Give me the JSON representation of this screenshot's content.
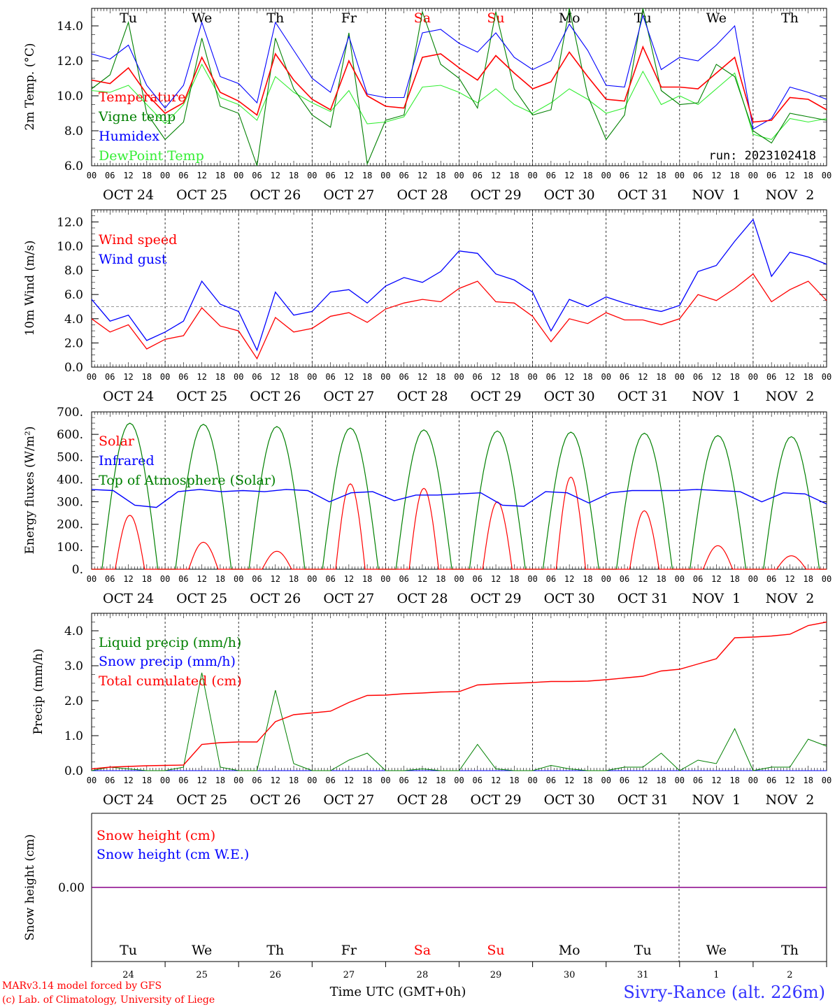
{
  "run_label": "run: 2023102418",
  "station": "Sivry-Rance (alt. 226m)",
  "footer": [
    "MARv3.14 model forced by GFS",
    "(c) Lab. of Climatology, University of Liege"
  ],
  "x_title": "Time UTC (GMT+0h)",
  "hour_ticks": [
    "00",
    "06",
    "12",
    "18"
  ],
  "date_labels": [
    "OCT 24",
    "OCT 25",
    "OCT 26",
    "OCT 27",
    "OCT 28",
    "OCT 29",
    "OCT 30",
    "OCT 31",
    "NOV  1",
    "NOV  2"
  ],
  "weekdays": [
    "Tu",
    "We",
    "Th",
    "Fr",
    "Sa",
    "Su",
    "Mo",
    "Tu",
    "We",
    "Th"
  ],
  "weekend_days": [
    "Sa",
    "Su"
  ],
  "day_numbers": [
    "24",
    "25",
    "26",
    "27",
    "28",
    "29",
    "30",
    "31",
    "1",
    "2"
  ],
  "colors": {
    "red": "#ff0000",
    "green": "#008000",
    "blue": "#0000ff",
    "lightgreen": "#33ee33",
    "purple": "#880088",
    "grey": "#999999",
    "station": "#3333ff"
  },
  "chart_data": [
    {
      "type": "line",
      "ylabel": "2m Temp. (°C)",
      "ylim": [
        6,
        15
      ],
      "yticks": [
        "6.0",
        "8.0",
        "10.0",
        "12.0",
        "14.0"
      ],
      "x": [
        "Oct 24 00h",
        "Oct 24 06h",
        "Oct 24 12h",
        "Oct 24 18h",
        "Oct 25 00h",
        "Oct 25 06h",
        "Oct 25 12h",
        "Oct 25 18h",
        "Oct 26 00h",
        "Oct 26 06h",
        "Oct 26 12h",
        "Oct 26 18h",
        "Oct 27 00h",
        "Oct 27 06h",
        "Oct 27 12h",
        "Oct 27 18h",
        "Oct 28 00h",
        "Oct 28 06h",
        "Oct 28 12h",
        "Oct 28 18h",
        "Oct 29 00h",
        "Oct 29 06h",
        "Oct 29 12h",
        "Oct 29 18h",
        "Oct 30 00h",
        "Oct 30 06h",
        "Oct 30 12h",
        "Oct 30 18h",
        "Oct 31 00h",
        "Oct 31 06h",
        "Oct 31 12h",
        "Oct 31 18h",
        "Nov 1 00h",
        "Nov 1 06h",
        "Nov 1 12h",
        "Nov 1 18h",
        "Nov 2 00h",
        "Nov 2 06h",
        "Nov 2 12h",
        "Nov 2 18h",
        "Nov 3 00h"
      ],
      "series": [
        {
          "name": "Temperature",
          "color": "#ff0000",
          "values": [
            10.9,
            10.7,
            11.6,
            10.1,
            9.0,
            9.6,
            12.2,
            10.2,
            9.7,
            8.9,
            12.4,
            10.9,
            9.8,
            9.2,
            12.0,
            10.0,
            9.4,
            9.3,
            12.2,
            12.4,
            11.6,
            10.9,
            12.3,
            11.3,
            10.4,
            10.8,
            12.5,
            11.1,
            9.8,
            9.7,
            12.8,
            10.5,
            10.5,
            10.4,
            11.3,
            12.2,
            8.5,
            8.6,
            9.9,
            9.8,
            9.2
          ]
        },
        {
          "name": "Vigne temp",
          "color": "#008000",
          "values": [
            10.4,
            11.2,
            14.2,
            9.0,
            7.5,
            8.5,
            13.3,
            9.4,
            9.0,
            6.0,
            13.3,
            10.4,
            8.9,
            8.2,
            13.6,
            6.1,
            8.6,
            8.9,
            14.8,
            11.8,
            11.0,
            9.3,
            14.8,
            10.4,
            8.9,
            9.2,
            15.0,
            10.0,
            7.5,
            8.9,
            15.0,
            10.3,
            9.5,
            9.6,
            11.8,
            11.1,
            8.0,
            7.3,
            9.0,
            8.8,
            8.6
          ]
        },
        {
          "name": "Humidex",
          "color": "#0000ff",
          "values": [
            12.4,
            12.1,
            12.9,
            10.6,
            9.3,
            10.6,
            14.2,
            11.1,
            10.7,
            9.6,
            14.2,
            12.6,
            11.0,
            10.2,
            13.4,
            10.1,
            9.9,
            9.9,
            13.6,
            13.8,
            13.0,
            12.5,
            13.6,
            12.2,
            11.5,
            12.0,
            14.1,
            12.6,
            10.6,
            10.5,
            14.6,
            11.5,
            12.2,
            12.0,
            12.9,
            14.0,
            8.1,
            8.7,
            10.5,
            10.2,
            9.8
          ]
        },
        {
          "name": "DewPoint Temp",
          "color": "#33ee33",
          "values": [
            10.3,
            10.2,
            10.6,
            9.5,
            8.4,
            9.5,
            11.8,
            9.9,
            9.5,
            8.6,
            11.1,
            10.2,
            9.6,
            9.1,
            10.3,
            8.4,
            8.5,
            8.8,
            10.5,
            10.6,
            10.2,
            9.6,
            10.4,
            9.5,
            9.0,
            9.6,
            10.4,
            9.8,
            9.0,
            9.3,
            11.4,
            9.5,
            10.0,
            9.5,
            10.4,
            11.3,
            7.8,
            7.5,
            8.7,
            8.5,
            8.7
          ]
        }
      ]
    },
    {
      "type": "line",
      "ylabel": "10m Wind (m/s)",
      "ylim": [
        0,
        13
      ],
      "yticks": [
        "0.0",
        "2.0",
        "4.0",
        "6.0",
        "8.0",
        "10.0",
        "12.0"
      ],
      "reference_line": 5.0,
      "series": [
        {
          "name": "Wind speed",
          "color": "#ff0000",
          "values": [
            4.0,
            2.9,
            3.5,
            1.5,
            2.3,
            2.6,
            4.9,
            3.4,
            3.0,
            0.7,
            4.1,
            2.9,
            3.2,
            4.2,
            4.5,
            3.7,
            4.8,
            5.3,
            5.6,
            5.4,
            6.5,
            7.1,
            5.4,
            5.3,
            4.2,
            2.1,
            4.0,
            3.6,
            4.5,
            3.9,
            3.9,
            3.5,
            4.0,
            6.0,
            5.5,
            6.5,
            7.7,
            5.4,
            6.4,
            7.1,
            5.5
          ]
        },
        {
          "name": "Wind gust",
          "color": "#0000ff",
          "values": [
            5.6,
            3.8,
            4.3,
            2.2,
            2.9,
            3.8,
            7.1,
            5.2,
            4.6,
            1.4,
            6.2,
            4.3,
            4.6,
            6.2,
            6.4,
            5.3,
            6.7,
            7.4,
            7.0,
            7.9,
            9.6,
            9.4,
            7.7,
            7.2,
            6.2,
            3.0,
            5.6,
            5.0,
            5.8,
            5.3,
            4.9,
            4.6,
            5.1,
            7.9,
            8.4,
            10.4,
            12.2,
            7.5,
            9.5,
            9.1,
            8.5
          ]
        }
      ]
    },
    {
      "type": "line",
      "ylabel": "Energy fluxes (W/m²)",
      "ylim": [
        0,
        700
      ],
      "yticks": [
        "0.",
        "100.",
        "200.",
        "300.",
        "400.",
        "500.",
        "600.",
        "700."
      ],
      "series": [
        {
          "name": "Solar",
          "color": "#ff0000",
          "peaks": [
            240,
            120,
            80,
            380,
            360,
            300,
            410,
            260,
            105,
            60
          ]
        },
        {
          "name": "Infrared",
          "color": "#0000ff",
          "values": [
            355,
            350,
            285,
            275,
            345,
            355,
            345,
            350,
            345,
            355,
            350,
            300,
            340,
            345,
            305,
            330,
            330,
            335,
            340,
            285,
            280,
            345,
            340,
            295,
            340,
            350,
            350,
            350,
            355,
            350,
            345,
            300,
            340,
            335,
            290
          ]
        },
        {
          "name": "Top of Atmosphere (Solar)",
          "color": "#008000",
          "peaks": [
            650,
            645,
            635,
            628,
            620,
            615,
            610,
            605,
            595,
            590
          ]
        }
      ]
    },
    {
      "type": "line",
      "ylabel": "Precip (mm/h)",
      "ylim": [
        0,
        4.5
      ],
      "yticks": [
        "0.0",
        "1.0",
        "2.0",
        "3.0",
        "4.0"
      ],
      "series": [
        {
          "name": "Liquid precip (mm/h)",
          "color": "#008000",
          "values": [
            0.0,
            0.1,
            0.05,
            0.0,
            0.0,
            0.1,
            2.8,
            0.1,
            0.0,
            0.0,
            2.3,
            0.2,
            0.0,
            0.0,
            0.3,
            0.5,
            0.0,
            0.0,
            0.05,
            0.0,
            0.0,
            0.75,
            0.05,
            0.0,
            0.0,
            0.15,
            0.05,
            0.0,
            0.0,
            0.1,
            0.1,
            0.5,
            0.0,
            0.3,
            0.2,
            1.2,
            0.0,
            0.1,
            0.1,
            0.9,
            0.7
          ]
        },
        {
          "name": "Snow precip (mm/h)",
          "color": "#0000ff",
          "values": [
            0,
            0,
            0,
            0,
            0,
            0,
            0,
            0,
            0,
            0,
            0,
            0,
            0,
            0,
            0,
            0,
            0,
            0,
            0,
            0,
            0,
            0,
            0,
            0,
            0,
            0,
            0,
            0,
            0,
            0,
            0,
            0,
            0,
            0,
            0,
            0,
            0,
            0,
            0,
            0,
            0
          ]
        },
        {
          "name": "Total cumulated (cm)",
          "color": "#ff0000",
          "values": [
            0.05,
            0.1,
            0.12,
            0.14,
            0.15,
            0.16,
            0.75,
            0.8,
            0.82,
            0.82,
            1.4,
            1.6,
            1.65,
            1.7,
            1.95,
            2.15,
            2.16,
            2.2,
            2.22,
            2.25,
            2.26,
            2.45,
            2.48,
            2.5,
            2.52,
            2.55,
            2.55,
            2.56,
            2.6,
            2.65,
            2.7,
            2.85,
            2.9,
            3.05,
            3.2,
            3.8,
            3.82,
            3.85,
            3.9,
            4.15,
            4.25
          ]
        }
      ]
    },
    {
      "type": "line",
      "ylabel": "Snow height (cm)",
      "yticks": [
        "0.00"
      ],
      "series": [
        {
          "name": "Snow height (cm)",
          "color": "#ff0000",
          "values": [
            0,
            0
          ]
        },
        {
          "name": "Snow height (cm W.E.)",
          "color": "#0000ff",
          "values": [
            0,
            0
          ]
        }
      ]
    }
  ]
}
